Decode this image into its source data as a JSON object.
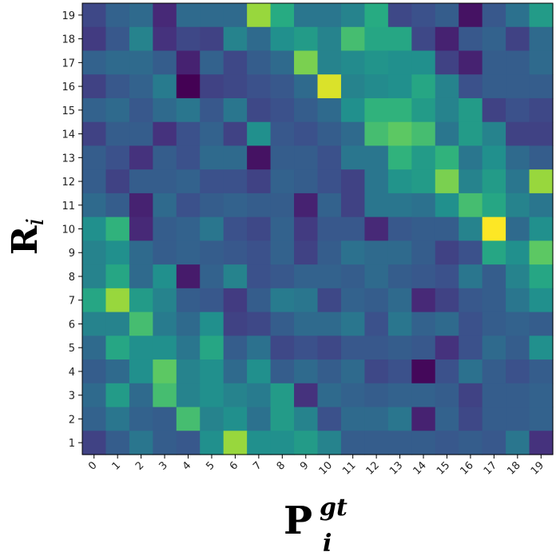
{
  "chart_data": {
    "type": "heatmap",
    "xlabel": "P",
    "xlabel_superscript": "gt",
    "xlabel_subscript": "i",
    "ylabel": "R",
    "ylabel_subscript": "i",
    "x_categories": [
      "0",
      "1",
      "2",
      "3",
      "4",
      "5",
      "6",
      "7",
      "8",
      "9",
      "10",
      "11",
      "12",
      "13",
      "14",
      "15",
      "16",
      "17",
      "18",
      "19"
    ],
    "y_categories": [
      "1",
      "2",
      "3",
      "4",
      "5",
      "6",
      "7",
      "8",
      "9",
      "10",
      "11",
      "12",
      "13",
      "14",
      "15",
      "16",
      "17",
      "18",
      "19"
    ],
    "colormap": "viridis",
    "value_range": [
      0,
      1
    ],
    "grid": false,
    "rows_top_to_bottom": [
      [
        0.22,
        0.32,
        0.35,
        0.12,
        0.35,
        0.35,
        0.35,
        0.85,
        0.62,
        0.4,
        0.4,
        0.45,
        0.62,
        0.22,
        0.25,
        0.3,
        0.05,
        0.28,
        0.38,
        0.55
      ],
      [
        0.18,
        0.28,
        0.45,
        0.15,
        0.22,
        0.2,
        0.45,
        0.35,
        0.5,
        0.55,
        0.45,
        0.7,
        0.6,
        0.6,
        0.22,
        0.1,
        0.28,
        0.32,
        0.2,
        0.35
      ],
      [
        0.32,
        0.35,
        0.35,
        0.3,
        0.1,
        0.32,
        0.22,
        0.3,
        0.35,
        0.8,
        0.45,
        0.48,
        0.52,
        0.5,
        0.5,
        0.2,
        0.1,
        0.3,
        0.3,
        0.35
      ],
      [
        0.2,
        0.28,
        0.32,
        0.42,
        0.0,
        0.2,
        0.22,
        0.25,
        0.28,
        0.35,
        0.95,
        0.45,
        0.48,
        0.5,
        0.6,
        0.45,
        0.25,
        0.3,
        0.3,
        0.3
      ],
      [
        0.32,
        0.35,
        0.28,
        0.35,
        0.4,
        0.28,
        0.4,
        0.22,
        0.25,
        0.3,
        0.35,
        0.5,
        0.65,
        0.65,
        0.55,
        0.45,
        0.55,
        0.2,
        0.25,
        0.22
      ],
      [
        0.2,
        0.3,
        0.3,
        0.15,
        0.25,
        0.32,
        0.2,
        0.5,
        0.28,
        0.25,
        0.3,
        0.35,
        0.7,
        0.75,
        0.7,
        0.4,
        0.55,
        0.45,
        0.2,
        0.2
      ],
      [
        0.3,
        0.25,
        0.15,
        0.3,
        0.25,
        0.35,
        0.35,
        0.05,
        0.3,
        0.3,
        0.25,
        0.4,
        0.4,
        0.65,
        0.55,
        0.65,
        0.4,
        0.5,
        0.35,
        0.3
      ],
      [
        0.3,
        0.2,
        0.3,
        0.3,
        0.32,
        0.25,
        0.25,
        0.2,
        0.32,
        0.3,
        0.25,
        0.2,
        0.4,
        0.52,
        0.55,
        0.8,
        0.45,
        0.55,
        0.4,
        0.85
      ],
      [
        0.35,
        0.3,
        0.1,
        0.35,
        0.25,
        0.3,
        0.32,
        0.3,
        0.3,
        0.1,
        0.32,
        0.2,
        0.4,
        0.4,
        0.38,
        0.5,
        0.7,
        0.6,
        0.45,
        0.4
      ],
      [
        0.5,
        0.65,
        0.12,
        0.3,
        0.32,
        0.4,
        0.25,
        0.22,
        0.32,
        0.18,
        0.28,
        0.28,
        0.12,
        0.28,
        0.3,
        0.3,
        0.45,
        1.0,
        0.35,
        0.5
      ],
      [
        0.45,
        0.5,
        0.35,
        0.3,
        0.32,
        0.3,
        0.28,
        0.25,
        0.32,
        0.2,
        0.3,
        0.38,
        0.35,
        0.35,
        0.3,
        0.2,
        0.25,
        0.6,
        0.5,
        0.75
      ],
      [
        0.45,
        0.6,
        0.35,
        0.5,
        0.08,
        0.32,
        0.45,
        0.25,
        0.28,
        0.32,
        0.32,
        0.3,
        0.35,
        0.3,
        0.28,
        0.25,
        0.4,
        0.3,
        0.45,
        0.6
      ],
      [
        0.6,
        0.85,
        0.55,
        0.45,
        0.3,
        0.28,
        0.18,
        0.3,
        0.42,
        0.4,
        0.22,
        0.32,
        0.3,
        0.35,
        0.12,
        0.2,
        0.28,
        0.3,
        0.4,
        0.5
      ],
      [
        0.45,
        0.45,
        0.7,
        0.42,
        0.35,
        0.5,
        0.2,
        0.22,
        0.3,
        0.35,
        0.35,
        0.4,
        0.25,
        0.4,
        0.32,
        0.35,
        0.25,
        0.3,
        0.32,
        0.3
      ],
      [
        0.35,
        0.6,
        0.5,
        0.5,
        0.4,
        0.6,
        0.3,
        0.38,
        0.22,
        0.25,
        0.22,
        0.28,
        0.28,
        0.3,
        0.28,
        0.15,
        0.25,
        0.35,
        0.3,
        0.5
      ],
      [
        0.3,
        0.35,
        0.5,
        0.75,
        0.45,
        0.5,
        0.35,
        0.5,
        0.3,
        0.35,
        0.3,
        0.35,
        0.22,
        0.25,
        0.02,
        0.25,
        0.38,
        0.3,
        0.25,
        0.3
      ],
      [
        0.35,
        0.55,
        0.35,
        0.7,
        0.45,
        0.5,
        0.45,
        0.42,
        0.55,
        0.15,
        0.35,
        0.32,
        0.3,
        0.32,
        0.32,
        0.3,
        0.2,
        0.3,
        0.3,
        0.32
      ],
      [
        0.32,
        0.4,
        0.32,
        0.3,
        0.7,
        0.45,
        0.5,
        0.38,
        0.55,
        0.45,
        0.25,
        0.35,
        0.35,
        0.4,
        0.1,
        0.32,
        0.22,
        0.3,
        0.3,
        0.32
      ],
      [
        0.2,
        0.3,
        0.4,
        0.3,
        0.28,
        0.5,
        0.85,
        0.5,
        0.5,
        0.55,
        0.45,
        0.3,
        0.3,
        0.3,
        0.3,
        0.28,
        0.3,
        0.28,
        0.4,
        0.15
      ]
    ]
  }
}
